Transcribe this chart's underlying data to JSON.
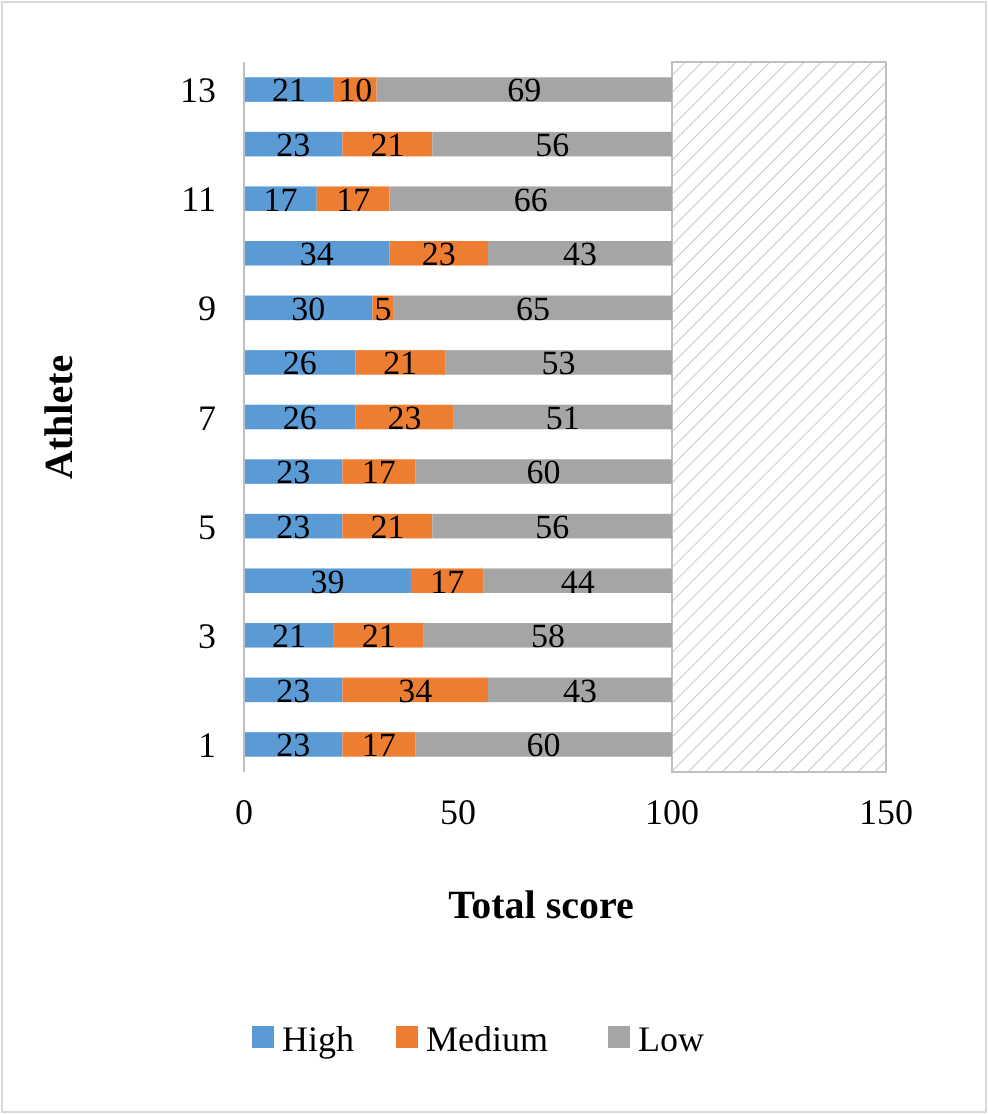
{
  "chart_data": {
    "type": "bar",
    "orientation": "horizontal",
    "stacked": true,
    "xlabel": "Total score",
    "ylabel": "Athlete",
    "categories": [
      "13",
      null,
      "11",
      null,
      "9",
      null,
      "7",
      null,
      "5",
      null,
      "3",
      null,
      "1"
    ],
    "series": [
      {
        "name": "High",
        "color": "#5b9bd5",
        "values": [
          21,
          23,
          17,
          34,
          30,
          26,
          26,
          23,
          23,
          39,
          21,
          23,
          23
        ]
      },
      {
        "name": "Medium",
        "color": "#ed7d31",
        "values": [
          10,
          21,
          17,
          23,
          5,
          21,
          23,
          17,
          21,
          17,
          21,
          34,
          17
        ]
      },
      {
        "name": "Low",
        "color": "#a5a5a5",
        "values": [
          69,
          56,
          66,
          43,
          65,
          53,
          51,
          60,
          56,
          44,
          58,
          43,
          60
        ]
      }
    ],
    "xlim": [
      0,
      150
    ],
    "xticks": [
      0,
      50,
      100,
      150
    ],
    "data_labels": true,
    "grid": false,
    "legend": "bottom",
    "bands": [
      {
        "axis": "x",
        "from": 100,
        "to": 150,
        "color": "#bfbfbf"
      }
    ]
  }
}
